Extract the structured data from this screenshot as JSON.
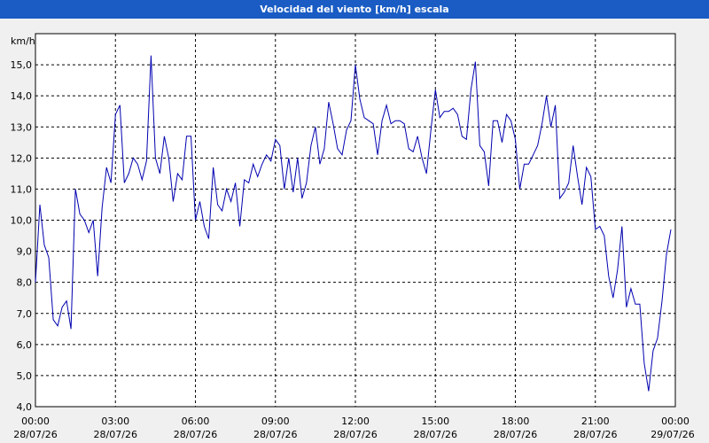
{
  "chart_data": {
    "type": "line",
    "title": "Velocidad del viento [km/h] escala",
    "ylabel": "km/h",
    "xlabel": "",
    "ylim": [
      4.0,
      16.0
    ],
    "xlim_hours": [
      0,
      24
    ],
    "grid": true,
    "colors": {
      "line": "#0000b0",
      "plot_bg": "#ffffff",
      "title_bg": "#1a5cc4",
      "grid": "#000000"
    },
    "y_ticks": [
      "4,0",
      "5,0",
      "6,0",
      "7,0",
      "8,0",
      "9,0",
      "10,0",
      "11,0",
      "12,0",
      "13,0",
      "14,0",
      "15,0"
    ],
    "x_ticks": [
      {
        "time": "00:00",
        "date": "28/07/26"
      },
      {
        "time": "03:00",
        "date": "28/07/26"
      },
      {
        "time": "06:00",
        "date": "28/07/26"
      },
      {
        "time": "09:00",
        "date": "28/07/26"
      },
      {
        "time": "12:00",
        "date": "28/07/26"
      },
      {
        "time": "15:00",
        "date": "28/07/26"
      },
      {
        "time": "18:00",
        "date": "28/07/26"
      },
      {
        "time": "21:00",
        "date": "28/07/26"
      },
      {
        "time": "00:00",
        "date": "29/07/26"
      }
    ],
    "series": [
      {
        "interval_minutes": 10,
        "values": [
          8.0,
          10.5,
          9.2,
          8.8,
          6.8,
          6.6,
          7.2,
          7.4,
          6.5,
          11.0,
          10.2,
          10.0,
          9.6,
          10.0,
          8.2,
          10.4,
          11.7,
          11.2,
          13.4,
          13.7,
          11.2,
          11.5,
          12.0,
          11.8,
          11.3,
          11.9,
          15.3,
          12.0,
          11.5,
          12.7,
          12.0,
          10.6,
          11.5,
          11.3,
          12.7,
          12.7,
          10.0,
          10.6,
          9.8,
          9.4,
          11.7,
          10.5,
          10.3,
          11.0,
          10.6,
          11.2,
          9.8,
          11.3,
          11.2,
          11.8,
          11.4,
          11.8,
          12.1,
          11.9,
          12.6,
          12.4,
          11.0,
          12.0,
          10.9,
          12.0,
          10.7,
          11.2,
          12.4,
          13.0,
          11.8,
          12.3,
          13.8,
          13.1,
          12.3,
          12.1,
          12.9,
          13.2,
          15.0,
          13.9,
          13.3,
          13.2,
          13.1,
          12.1,
          13.2,
          13.7,
          13.1,
          13.2,
          13.2,
          13.1,
          12.3,
          12.2,
          12.7,
          12.0,
          11.5,
          12.9,
          14.2,
          13.3,
          13.5,
          13.5,
          13.6,
          13.4,
          12.7,
          12.6,
          14.2,
          15.1,
          12.4,
          12.2,
          11.1,
          13.2,
          13.2,
          12.5,
          13.4,
          13.2,
          12.6,
          11.0,
          11.8,
          11.8,
          12.1,
          12.4,
          13.1,
          14.0,
          13.0,
          13.7,
          10.7,
          10.9,
          11.2,
          12.4,
          11.4,
          10.5,
          11.7,
          11.4,
          9.7,
          9.8,
          9.5,
          8.2,
          7.5,
          8.4,
          9.8,
          7.2,
          7.8,
          7.3,
          7.3,
          5.4,
          4.5,
          5.8,
          6.2,
          7.4,
          8.9,
          9.7
        ]
      }
    ]
  }
}
